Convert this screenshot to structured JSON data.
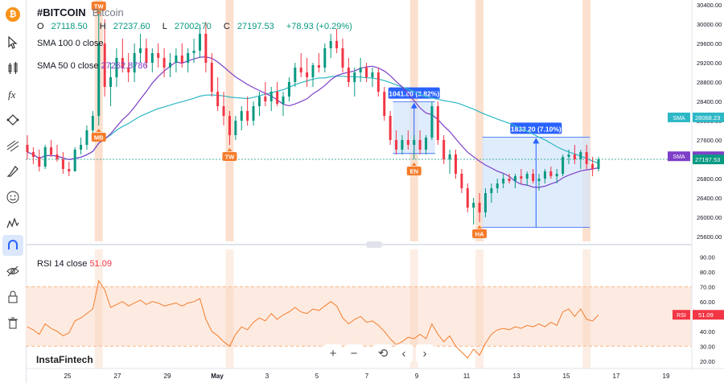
{
  "symbol": {
    "ticker": "#BITCOIN",
    "name": "Bitcoin"
  },
  "ohlc": {
    "o_label": "O",
    "o": "27118.50",
    "h_label": "H",
    "h": "27237.60",
    "l_label": "L",
    "l": "27002.70",
    "c_label": "C",
    "c": "27197.53",
    "change": "+78.93 (+0.29%)"
  },
  "sma100_legend": "SMA 100 0 close",
  "sma50_legend": {
    "label": "SMA 50 0 close",
    "value": "27262.8786"
  },
  "rsi_legend": {
    "label": "RSI 14 close",
    "value": "51.09"
  },
  "watermark": "InstaFintech",
  "toolbar": [
    "bitcoin-logo",
    "cursor-icon",
    "candles-icon",
    "fx-icon",
    "trend-icon",
    "lines-icon",
    "brush-icon",
    "smile-icon",
    "pattern-icon",
    "magnet-icon",
    "eye-icon",
    "lock-icon",
    "trash-icon"
  ],
  "nav_buttons": [
    "+",
    "−",
    "⟲",
    "‹",
    "›"
  ],
  "colors": {
    "up": "#089981",
    "down": "#f23645",
    "sma50": "#7e3fc9",
    "sma100": "#2eb8c6",
    "rsi": "#f57c2b",
    "highlight": "#f7c6a8",
    "measure": "#2962ff"
  },
  "chart_data": {
    "type": "candlestick",
    "price_axis": {
      "ticks": [
        30400,
        30000,
        29600,
        29200,
        28800,
        28400,
        28000,
        27600,
        27200,
        26800,
        26400,
        26000,
        25600
      ]
    },
    "date_axis": {
      "ticks": [
        "25",
        "27",
        "29",
        "May",
        "3",
        "5",
        "7",
        "9",
        "11",
        "13",
        "15",
        "17",
        "19"
      ]
    },
    "rsi_axis": {
      "ticks": [
        90,
        80,
        70,
        60,
        50,
        40,
        30,
        20
      ]
    },
    "price_labels": [
      {
        "label": "SMA",
        "value": "28068.23",
        "price": 28068
      },
      {
        "label": "SMA",
        "value": "27262.88",
        "price": 27263
      },
      {
        "label": "",
        "value": "27197.53",
        "price": 27198
      }
    ],
    "rsi_label": {
      "label": "RSI",
      "value": "51.09"
    },
    "annotations": [
      {
        "text": "TW",
        "dir": "down",
        "i": 12
      },
      {
        "text": "MB",
        "dir": "up",
        "i": 12
      },
      {
        "text": "TW",
        "dir": "up",
        "i": 34
      },
      {
        "text": "EN",
        "dir": "up",
        "i": 65
      },
      {
        "text": "HA",
        "dir": "up",
        "i": 76
      }
    ],
    "highlight_bars": [
      12,
      34,
      65,
      76,
      94
    ],
    "measures": [
      {
        "label": "1041.80 (3.82%)",
        "i0": 62,
        "i1": 68,
        "p0": 27320,
        "p1": 28390
      },
      {
        "label": "1833.20 (7.10%)",
        "i0": 77,
        "i1": 94,
        "p0": 25790,
        "p1": 27660
      }
    ],
    "candles": [
      [
        27500,
        27700,
        27200,
        27350
      ],
      [
        27350,
        27450,
        27100,
        27250
      ],
      [
        27250,
        27400,
        26950,
        27050
      ],
      [
        27050,
        27500,
        27000,
        27450
      ],
      [
        27450,
        27600,
        27250,
        27300
      ],
      [
        27300,
        27500,
        27150,
        27200
      ],
      [
        27200,
        27350,
        26900,
        27000
      ],
      [
        27000,
        27150,
        26850,
        26950
      ],
      [
        26950,
        27450,
        26950,
        27400
      ],
      [
        27400,
        27650,
        27300,
        27500
      ],
      [
        27500,
        27900,
        27400,
        27800
      ],
      [
        27800,
        28200,
        27600,
        28100
      ],
      [
        28100,
        30400,
        27900,
        29600
      ],
      [
        29600,
        30100,
        28500,
        28700
      ],
      [
        28700,
        29200,
        28300,
        28900
      ],
      [
        28900,
        29500,
        28700,
        29300
      ],
      [
        29300,
        29700,
        29000,
        29100
      ],
      [
        29100,
        29400,
        28800,
        29000
      ],
      [
        29000,
        29600,
        28800,
        29400
      ],
      [
        29400,
        29800,
        29200,
        29500
      ],
      [
        29500,
        29700,
        29100,
        29200
      ],
      [
        29200,
        29500,
        29000,
        29400
      ],
      [
        29400,
        29600,
        29100,
        29300
      ],
      [
        29300,
        29500,
        28900,
        29100
      ],
      [
        29100,
        29400,
        28900,
        29200
      ],
      [
        29200,
        29500,
        29000,
        29350
      ],
      [
        29350,
        29600,
        29100,
        29200
      ],
      [
        29200,
        29500,
        29000,
        29400
      ],
      [
        29400,
        29700,
        29200,
        29450
      ],
      [
        29450,
        30000,
        29300,
        29800
      ],
      [
        29800,
        30050,
        29000,
        29200
      ],
      [
        29200,
        29400,
        28500,
        28600
      ],
      [
        28600,
        28900,
        28200,
        28300
      ],
      [
        28300,
        28600,
        27900,
        28100
      ],
      [
        28100,
        28200,
        27500,
        27700
      ],
      [
        27700,
        28100,
        27600,
        28000
      ],
      [
        28000,
        28300,
        27800,
        28200
      ],
      [
        28200,
        28500,
        27900,
        28000
      ],
      [
        28000,
        28400,
        27900,
        28300
      ],
      [
        28300,
        28600,
        28100,
        28500
      ],
      [
        28500,
        28800,
        28300,
        28400
      ],
      [
        28400,
        28700,
        28200,
        28600
      ],
      [
        28600,
        28800,
        28300,
        28350
      ],
      [
        28350,
        28600,
        28100,
        28500
      ],
      [
        28500,
        28900,
        28400,
        28800
      ],
      [
        28800,
        29200,
        28700,
        29100
      ],
      [
        29100,
        29400,
        28900,
        29000
      ],
      [
        29000,
        29300,
        28700,
        28900
      ],
      [
        28900,
        29200,
        28700,
        29150
      ],
      [
        29150,
        29400,
        29000,
        29100
      ],
      [
        29100,
        29600,
        29000,
        29500
      ],
      [
        29500,
        29800,
        29300,
        29650
      ],
      [
        29650,
        29900,
        29400,
        29500
      ],
      [
        29500,
        29700,
        29000,
        29100
      ],
      [
        29100,
        29300,
        28700,
        28800
      ],
      [
        28800,
        29100,
        28500,
        29000
      ],
      [
        29000,
        29300,
        28800,
        29100
      ],
      [
        29100,
        29200,
        28800,
        28900
      ],
      [
        28900,
        29100,
        28700,
        29000
      ],
      [
        29000,
        29100,
        28500,
        28600
      ],
      [
        28600,
        28700,
        28000,
        28100
      ],
      [
        28100,
        28200,
        27500,
        27600
      ],
      [
        27600,
        27800,
        27300,
        27400
      ],
      [
        27400,
        27700,
        27300,
        27600
      ],
      [
        27600,
        27800,
        27400,
        27500
      ],
      [
        27500,
        27700,
        27200,
        27600
      ],
      [
        27600,
        27800,
        27300,
        27400
      ],
      [
        27400,
        27700,
        27300,
        27650
      ],
      [
        27650,
        28400,
        27600,
        28300
      ],
      [
        28300,
        28400,
        27500,
        27600
      ],
      [
        27600,
        27700,
        27100,
        27200
      ],
      [
        27200,
        27400,
        26900,
        27300
      ],
      [
        27300,
        27400,
        26800,
        26900
      ],
      [
        26900,
        27000,
        26500,
        26600
      ],
      [
        26600,
        26700,
        26100,
        26200
      ],
      [
        26200,
        26400,
        25850,
        26300
      ],
      [
        26300,
        26500,
        25900,
        26100
      ],
      [
        26100,
        26600,
        26000,
        26500
      ],
      [
        26500,
        26700,
        26300,
        26600
      ],
      [
        26600,
        26800,
        26500,
        26700
      ],
      [
        26700,
        26900,
        26600,
        26800
      ],
      [
        26800,
        26900,
        26700,
        26750
      ],
      [
        26750,
        26900,
        26600,
        26850
      ],
      [
        26850,
        27000,
        26700,
        26800
      ],
      [
        26800,
        26950,
        26650,
        26900
      ],
      [
        26900,
        27000,
        26700,
        26750
      ],
      [
        26750,
        26900,
        26550,
        26800
      ],
      [
        26800,
        27000,
        26700,
        26950
      ],
      [
        26950,
        27050,
        26800,
        26850
      ],
      [
        26850,
        27000,
        26700,
        26900
      ],
      [
        26900,
        27300,
        26850,
        27250
      ],
      [
        27250,
        27400,
        27100,
        27300
      ],
      [
        27300,
        27500,
        27100,
        27200
      ],
      [
        27200,
        27400,
        27000,
        27350
      ],
      [
        27350,
        27500,
        27000,
        27100
      ],
      [
        27100,
        27250,
        26850,
        27000
      ],
      [
        27000,
        27250,
        26950,
        27200
      ]
    ],
    "rsi": [
      43,
      41,
      38,
      45,
      42,
      40,
      37,
      39,
      47,
      49,
      52,
      55,
      74,
      68,
      56,
      58,
      60,
      57,
      59,
      61,
      58,
      60,
      59,
      57,
      58,
      59,
      57,
      59,
      60,
      62,
      48,
      40,
      37,
      33,
      30,
      38,
      43,
      41,
      46,
      49,
      47,
      52,
      48,
      51,
      53,
      56,
      53,
      52,
      55,
      54,
      57,
      60,
      57,
      49,
      45,
      48,
      50,
      46,
      47,
      44,
      40,
      35,
      31,
      33,
      36,
      35,
      38,
      35,
      45,
      38,
      33,
      37,
      30,
      26,
      22,
      28,
      24,
      32,
      38,
      41,
      42,
      41,
      43,
      42,
      44,
      43,
      45,
      43,
      46,
      44,
      53,
      55,
      50,
      55,
      48,
      47,
      51
    ]
  }
}
